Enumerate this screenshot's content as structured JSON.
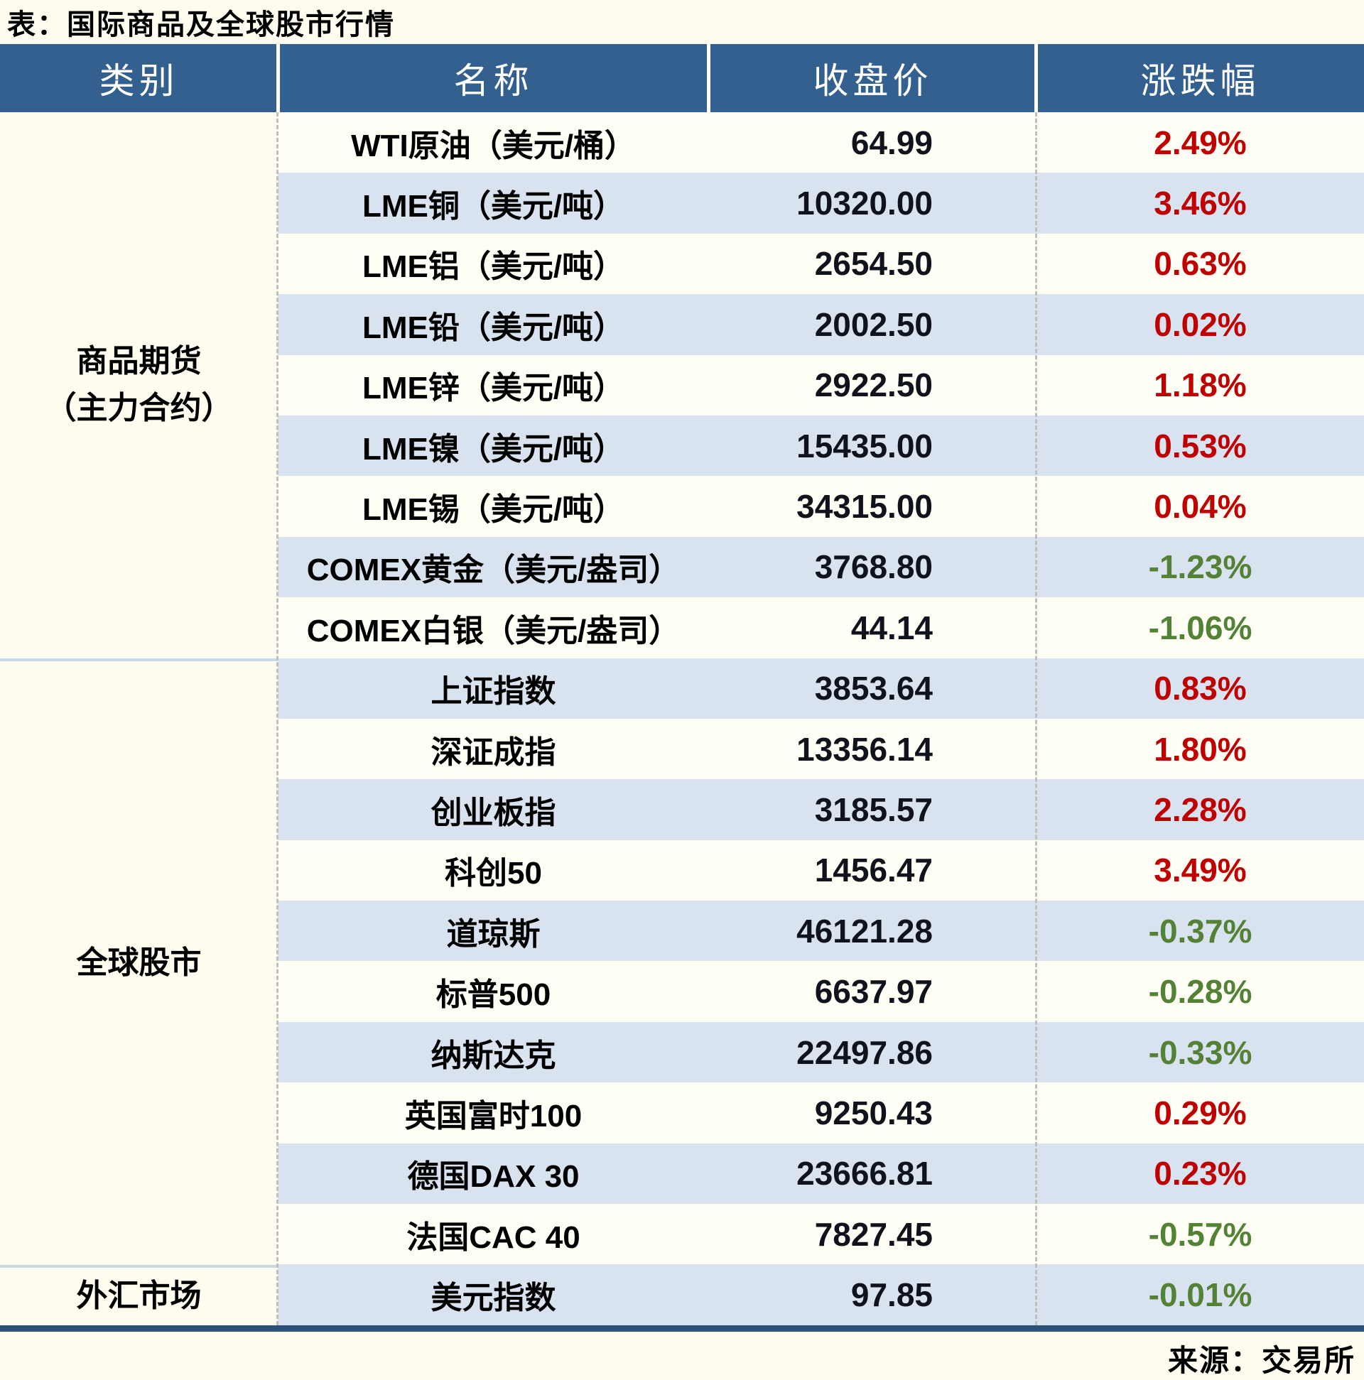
{
  "title": "表：国际商品及全球股市行情",
  "source": "来源：交易所",
  "colors": {
    "header_bg": "#33608E",
    "row_alt_bg": "#D9E2EF",
    "row_light_bg": "#FFFEF5",
    "positive_change": "#C00000",
    "negative_change": "#538135",
    "bottom_border": "#2B5179"
  },
  "table": {
    "headers": [
      "类别",
      "名称",
      "收盘价",
      "涨跌幅"
    ],
    "sections": [
      {
        "category_lines": [
          "商品期货",
          "（主力合约）"
        ],
        "rows": [
          {
            "name": "WTI原油（美元/桶）",
            "close": "64.99",
            "change": "2.49%",
            "direction": "up"
          },
          {
            "name": "LME铜（美元/吨）",
            "close": "10320.00",
            "change": "3.46%",
            "direction": "up"
          },
          {
            "name": "LME铝（美元/吨）",
            "close": "2654.50",
            "change": "0.63%",
            "direction": "up"
          },
          {
            "name": "LME铅（美元/吨）",
            "close": "2002.50",
            "change": "0.02%",
            "direction": "up"
          },
          {
            "name": "LME锌（美元/吨）",
            "close": "2922.50",
            "change": "1.18%",
            "direction": "up"
          },
          {
            "name": "LME镍（美元/吨）",
            "close": "15435.00",
            "change": "0.53%",
            "direction": "up"
          },
          {
            "name": "LME锡（美元/吨）",
            "close": "34315.00",
            "change": "0.04%",
            "direction": "up"
          },
          {
            "name": "COMEX黄金（美元/盎司）",
            "close": "3768.80",
            "change": "-1.23%",
            "direction": "down"
          },
          {
            "name": "COMEX白银（美元/盎司）",
            "close": "44.14",
            "change": "-1.06%",
            "direction": "down"
          }
        ]
      },
      {
        "category_lines": [
          "全球股市"
        ],
        "rows": [
          {
            "name": "上证指数",
            "close": "3853.64",
            "change": "0.83%",
            "direction": "up"
          },
          {
            "name": "深证成指",
            "close": "13356.14",
            "change": "1.80%",
            "direction": "up"
          },
          {
            "name": "创业板指",
            "close": "3185.57",
            "change": "2.28%",
            "direction": "up"
          },
          {
            "name": "科创50",
            "close": "1456.47",
            "change": "3.49%",
            "direction": "up"
          },
          {
            "name": "道琼斯",
            "close": "46121.28",
            "change": "-0.37%",
            "direction": "down"
          },
          {
            "name": "标普500",
            "close": "6637.97",
            "change": "-0.28%",
            "direction": "down"
          },
          {
            "name": "纳斯达克",
            "close": "22497.86",
            "change": "-0.33%",
            "direction": "down"
          },
          {
            "name": "英国富时100",
            "close": "9250.43",
            "change": "0.29%",
            "direction": "up"
          },
          {
            "name": "德国DAX 30",
            "close": "23666.81",
            "change": "0.23%",
            "direction": "up"
          },
          {
            "name": "法国CAC 40",
            "close": "7827.45",
            "change": "-0.57%",
            "direction": "down"
          }
        ]
      },
      {
        "category_lines": [
          "外汇市场"
        ],
        "rows": [
          {
            "name": "美元指数",
            "close": "97.85",
            "change": "-0.01%",
            "direction": "down"
          }
        ]
      }
    ]
  }
}
